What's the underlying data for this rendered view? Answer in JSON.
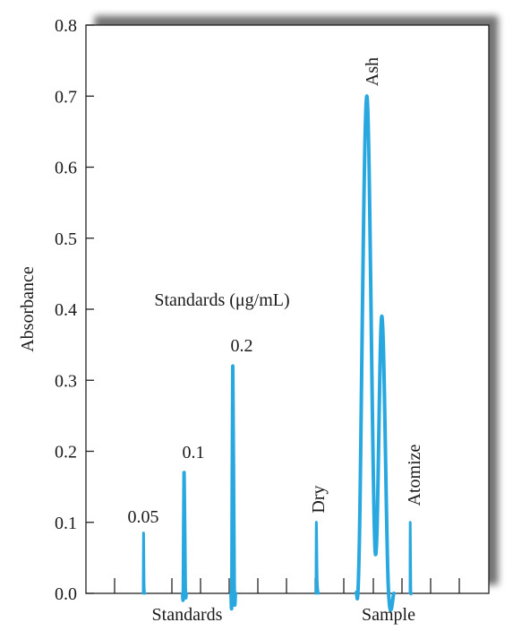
{
  "chart_data": {
    "type": "line",
    "title": "",
    "xlabel": "",
    "ylabel": "Absorbance",
    "ylim": [
      0,
      0.8
    ],
    "yticks": [
      "0.0",
      "0.1",
      "0.2",
      "0.3",
      "0.4",
      "0.5",
      "0.6",
      "0.7",
      "0.8"
    ],
    "grid": false,
    "x_group_labels": [
      "Standards",
      "Sample"
    ],
    "annotation_title": "Standards (μg/mL)",
    "line_color": "#29a8e0",
    "series": [
      {
        "label": "0.05",
        "group": "Standards",
        "points": [
          [
            0.0,
            0
          ],
          [
            0.02,
            0.085
          ],
          [
            0.06,
            0.012
          ],
          [
            0.12,
            0
          ]
        ]
      },
      {
        "label": "0.1",
        "group": "Standards",
        "points": [
          [
            0.0,
            0
          ],
          [
            0.05,
            0.005
          ],
          [
            0.1,
            0.17
          ],
          [
            0.18,
            0.01
          ],
          [
            0.25,
            0
          ]
        ]
      },
      {
        "label": "0.2",
        "group": "Standards",
        "points": [
          [
            0.0,
            0
          ],
          [
            0.05,
            0.005
          ],
          [
            0.1,
            0.32
          ],
          [
            0.18,
            0.012
          ],
          [
            0.25,
            0
          ]
        ]
      },
      {
        "label": "Dry",
        "group": "Sample",
        "points": [
          [
            0.0,
            0
          ],
          [
            0.02,
            0.1
          ],
          [
            0.08,
            0.02
          ],
          [
            0.16,
            0
          ]
        ]
      },
      {
        "label": "Ash",
        "group": "Sample",
        "points": [
          [
            0.0,
            0
          ],
          [
            0.08,
            0.07
          ],
          [
            0.28,
            0.7
          ],
          [
            0.5,
            0.06
          ],
          [
            0.68,
            0.39
          ],
          [
            0.85,
            0.01
          ],
          [
            1.0,
            0
          ]
        ]
      },
      {
        "label": "Atomize",
        "group": "Sample",
        "points": [
          [
            0.0,
            0
          ],
          [
            0.02,
            0.1
          ],
          [
            0.08,
            0.01
          ],
          [
            0.14,
            0
          ]
        ]
      }
    ]
  }
}
